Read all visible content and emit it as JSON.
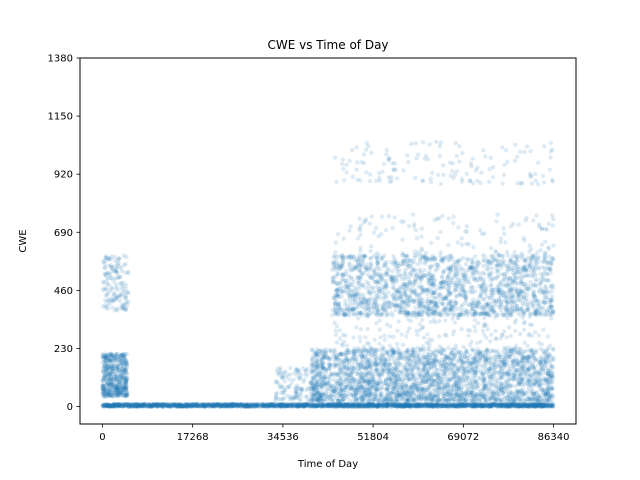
{
  "chart_data": {
    "type": "scatter",
    "title": "CWE vs Time of Day",
    "xlabel": "Time of Day",
    "ylabel": "CWE",
    "xlim": [
      -4300,
      90640
    ],
    "ylim": [
      -69,
      1380
    ],
    "xticks": [
      0,
      17268,
      34536,
      51804,
      69072,
      86340
    ],
    "xtick_labels": [
      "0",
      "17268",
      "34536",
      "51804",
      "69072",
      "86340"
    ],
    "yticks": [
      0,
      230,
      460,
      690,
      920,
      1150,
      1380
    ],
    "ytick_labels": [
      "0",
      "230",
      "460",
      "690",
      "920",
      "1150",
      "1380"
    ],
    "grid": false,
    "legend": "none",
    "series": [
      {
        "color": "#1f77b4",
        "alpha": 0.15,
        "clusters": [
          {
            "x_range": [
              0,
              86340
            ],
            "y_range": [
              0,
              10
            ],
            "density": "very high"
          },
          {
            "x_range": [
              0,
              4800
            ],
            "y_range": [
              40,
              210
            ],
            "density": "medium"
          },
          {
            "x_range": [
              0,
              5000
            ],
            "y_range": [
              380,
              600
            ],
            "density": "low"
          },
          {
            "x_range": [
              40000,
              86340
            ],
            "y_range": [
              20,
              230
            ],
            "density": "very high"
          },
          {
            "x_range": [
              44000,
              86340
            ],
            "y_range": [
              360,
              600
            ],
            "density": "high"
          },
          {
            "x_range": [
              44000,
              86340
            ],
            "y_range": [
              230,
              760
            ],
            "density": "medium"
          },
          {
            "x_range": [
              44000,
              86340
            ],
            "y_range": [
              880,
              1050
            ],
            "density": "low"
          },
          {
            "x_range": [
              33000,
              42000
            ],
            "y_range": [
              20,
              160
            ],
            "density": "low"
          }
        ]
      }
    ]
  }
}
